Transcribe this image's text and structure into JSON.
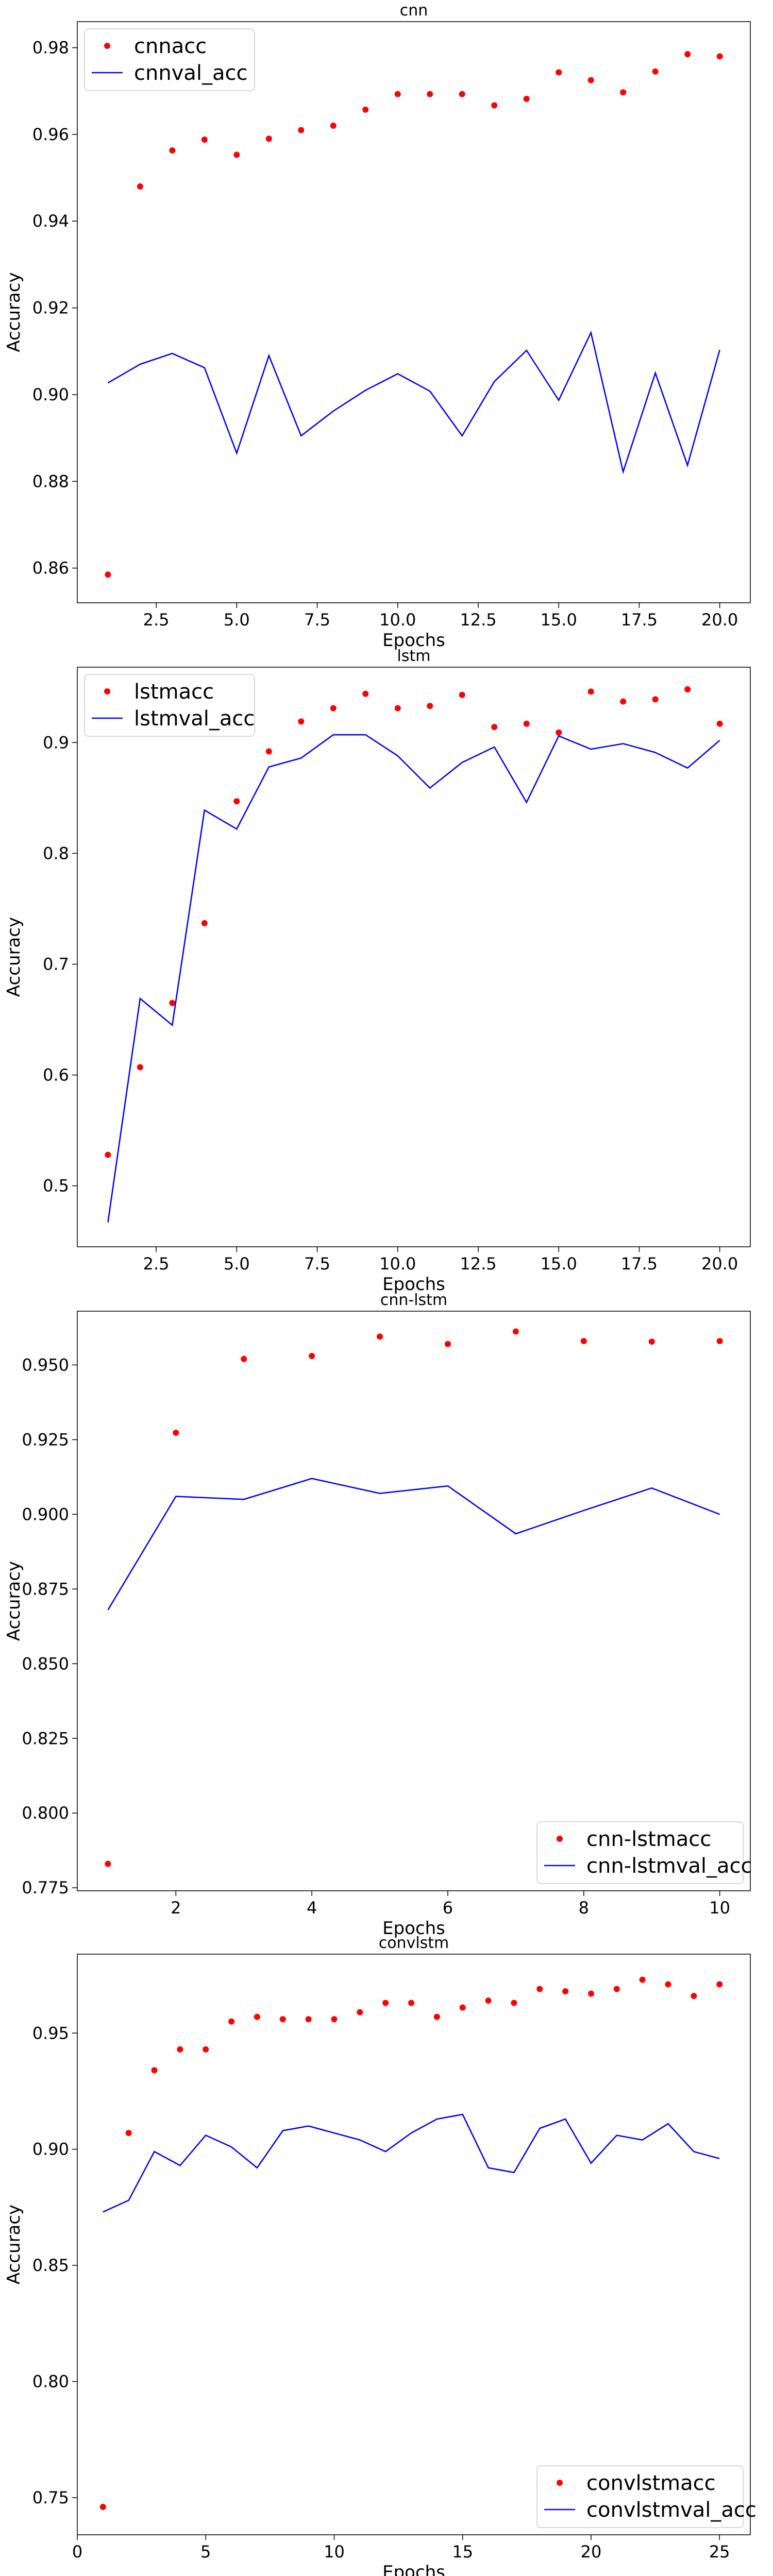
{
  "chart_data": [
    {
      "type": "line",
      "title": "cnn",
      "xlabel": "Epochs",
      "ylabel": "Accuracy",
      "xlim": [
        0.05,
        20.95
      ],
      "ylim": [
        0.852,
        0.986
      ],
      "xticks": [
        2.5,
        5.0,
        7.5,
        10.0,
        12.5,
        15.0,
        17.5,
        20.0
      ],
      "xtick_labels": [
        "2.5",
        "5.0",
        "7.5",
        "10.0",
        "12.5",
        "15.0",
        "17.5",
        "20.0"
      ],
      "yticks": [
        0.86,
        0.88,
        0.9,
        0.92,
        0.94,
        0.96,
        0.98
      ],
      "ytick_labels": [
        "0.86",
        "0.88",
        "0.90",
        "0.92",
        "0.94",
        "0.96",
        "0.98"
      ],
      "legend": "top-left",
      "grid": false,
      "series": [
        {
          "name": "cnnacc",
          "style": "dots",
          "color": "#ff0000",
          "x": [
            1,
            2,
            3,
            4,
            5,
            6,
            7,
            8,
            9,
            10,
            11,
            12,
            13,
            14,
            15,
            16,
            17,
            18,
            19,
            20
          ],
          "y": [
            0.8585,
            0.948,
            0.9563,
            0.9588,
            0.9553,
            0.959,
            0.961,
            0.962,
            0.9657,
            0.9693,
            0.9693,
            0.9693,
            0.9667,
            0.9682,
            0.9743,
            0.9725,
            0.9697,
            0.9745,
            0.9785,
            0.978
          ]
        },
        {
          "name": "cnnval_acc",
          "style": "line",
          "color": "#0000ff",
          "x": [
            1,
            2,
            3,
            4,
            5,
            6,
            7,
            8,
            9,
            10,
            11,
            12,
            13,
            14,
            15,
            16,
            17,
            18,
            19,
            20
          ],
          "y": [
            0.9027,
            0.907,
            0.9095,
            0.9062,
            0.8865,
            0.909,
            0.8905,
            0.8962,
            0.901,
            0.9048,
            0.9008,
            0.8905,
            0.903,
            0.9102,
            0.8987,
            0.9143,
            0.8822,
            0.905,
            0.8837,
            0.9103
          ]
        }
      ]
    },
    {
      "type": "line",
      "title": "lstm",
      "xlabel": "Epochs",
      "ylabel": "Accuracy",
      "xlim": [
        0.05,
        20.95
      ],
      "ylim": [
        0.445,
        0.968
      ],
      "xticks": [
        2.5,
        5.0,
        7.5,
        10.0,
        12.5,
        15.0,
        17.5,
        20.0
      ],
      "xtick_labels": [
        "2.5",
        "5.0",
        "7.5",
        "10.0",
        "12.5",
        "15.0",
        "17.5",
        "20.0"
      ],
      "yticks": [
        0.5,
        0.6,
        0.7,
        0.8,
        0.9
      ],
      "ytick_labels": [
        "0.5",
        "0.6",
        "0.7",
        "0.8",
        "0.9"
      ],
      "legend": "top-left",
      "grid": false,
      "series": [
        {
          "name": "lstmacc",
          "style": "dots",
          "color": "#ff0000",
          "x": [
            1,
            2,
            3,
            4,
            5,
            6,
            7,
            8,
            9,
            10,
            11,
            12,
            13,
            14,
            15,
            16,
            17,
            18,
            19,
            20
          ],
          "y": [
            0.528,
            0.607,
            0.665,
            0.737,
            0.847,
            0.892,
            0.919,
            0.931,
            0.944,
            0.931,
            0.933,
            0.943,
            0.914,
            0.917,
            0.909,
            0.946,
            0.937,
            0.939,
            0.948,
            0.917
          ]
        },
        {
          "name": "lstmval_acc",
          "style": "line",
          "color": "#0000ff",
          "x": [
            1,
            2,
            3,
            4,
            5,
            6,
            7,
            8,
            9,
            10,
            11,
            12,
            13,
            14,
            15,
            16,
            17,
            18,
            19,
            20
          ],
          "y": [
            0.467,
            0.669,
            0.645,
            0.839,
            0.822,
            0.878,
            0.886,
            0.907,
            0.907,
            0.888,
            0.859,
            0.882,
            0.896,
            0.846,
            0.906,
            0.894,
            0.899,
            0.891,
            0.877,
            0.902
          ]
        }
      ]
    },
    {
      "type": "line",
      "title": "cnn-lstm",
      "xlabel": "Epochs",
      "ylabel": "Accuracy",
      "xlim": [
        0.55,
        10.45
      ],
      "ylim": [
        0.774,
        0.968
      ],
      "xticks": [
        2,
        4,
        6,
        8,
        10
      ],
      "xtick_labels": [
        "2",
        "4",
        "6",
        "8",
        "10"
      ],
      "yticks": [
        0.775,
        0.8,
        0.825,
        0.85,
        0.875,
        0.9,
        0.925,
        0.95
      ],
      "ytick_labels": [
        "0.775",
        "0.800",
        "0.825",
        "0.850",
        "0.875",
        "0.900",
        "0.925",
        "0.950"
      ],
      "legend": "bottom-right",
      "grid": false,
      "series": [
        {
          "name": "cnn-lstmacc",
          "style": "dots",
          "color": "#ff0000",
          "x": [
            1,
            2,
            3,
            4,
            5,
            6,
            7,
            8,
            9,
            10
          ],
          "y": [
            0.783,
            0.9273,
            0.952,
            0.953,
            0.9595,
            0.957,
            0.9612,
            0.958,
            0.9578,
            0.958
          ]
        },
        {
          "name": "cnn-lstmval_acc",
          "style": "line",
          "color": "#0000ff",
          "x": [
            1,
            2,
            3,
            4,
            5,
            6,
            7,
            8,
            9,
            10
          ],
          "y": [
            0.868,
            0.906,
            0.905,
            0.912,
            0.907,
            0.9095,
            0.8935,
            0.9013,
            0.9088,
            0.9
          ]
        }
      ]
    },
    {
      "type": "line",
      "title": "convlstm",
      "xlabel": "Epochs",
      "ylabel": "Accuracy",
      "xlim": [
        0,
        26.2
      ],
      "ylim": [
        0.734,
        0.984
      ],
      "xticks": [
        0,
        5,
        10,
        15,
        20,
        25
      ],
      "xtick_labels": [
        "0",
        "5",
        "10",
        "15",
        "20",
        "25"
      ],
      "yticks": [
        0.75,
        0.8,
        0.85,
        0.9,
        0.95
      ],
      "ytick_labels": [
        "0.75",
        "0.80",
        "0.85",
        "0.90",
        "0.95"
      ],
      "legend": "bottom-right",
      "grid": false,
      "series": [
        {
          "name": "convlstmacc",
          "style": "dots",
          "color": "#ff0000",
          "x": [
            1,
            2,
            3,
            4,
            5,
            6,
            7,
            8,
            9,
            10,
            11,
            12,
            13,
            14,
            15,
            16,
            17,
            18,
            19,
            20,
            21,
            22,
            23,
            24,
            25
          ],
          "y": [
            0.746,
            0.907,
            0.934,
            0.943,
            0.943,
            0.955,
            0.957,
            0.956,
            0.956,
            0.956,
            0.959,
            0.963,
            0.963,
            0.957,
            0.961,
            0.964,
            0.963,
            0.969,
            0.968,
            0.967,
            0.969,
            0.973,
            0.971,
            0.966,
            0.971
          ]
        },
        {
          "name": "convlstmval_acc",
          "style": "line",
          "color": "#0000ff",
          "x": [
            1,
            2,
            3,
            4,
            5,
            6,
            7,
            8,
            9,
            10,
            11,
            12,
            13,
            14,
            15,
            16,
            17,
            18,
            19,
            20,
            21,
            22,
            23,
            24,
            25
          ],
          "y": [
            0.873,
            0.878,
            0.899,
            0.893,
            0.906,
            0.901,
            0.892,
            0.908,
            0.91,
            0.907,
            0.904,
            0.899,
            0.907,
            0.913,
            0.915,
            0.892,
            0.89,
            0.909,
            0.913,
            0.894,
            0.906,
            0.904,
            0.911,
            0.899,
            0.896
          ]
        }
      ]
    }
  ]
}
